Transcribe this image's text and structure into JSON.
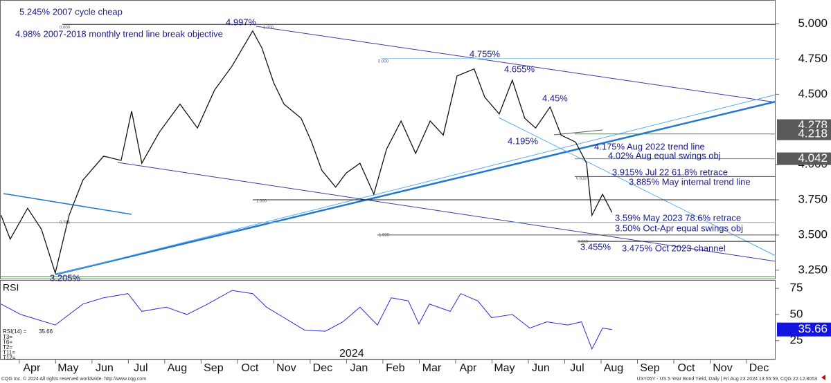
{
  "chart_data": [
    {
      "type": "line",
      "title": "USY05Y - US 5 Year Bond Yield, Daily | Fri Aug 23 2024 13:55:59, CQG 22.12.8053",
      "xlim": [
        -0.53,
        20.8
      ],
      "ylim": [
        3.19,
        5.17
      ],
      "yticks": [
        {
          "value": 5.0,
          "label": "5.000"
        },
        {
          "value": 4.75,
          "label": "4.750"
        },
        {
          "value": 4.5,
          "label": "4.500"
        },
        {
          "value": 4.0,
          "label": "4.000"
        },
        {
          "value": 3.75,
          "label": "3.750"
        },
        {
          "value": 3.5,
          "label": "3.500"
        },
        {
          "value": 3.25,
          "label": "3.250"
        }
      ],
      "price_markers": [
        {
          "value": 4.278,
          "label": "4.278"
        },
        {
          "value": 4.218,
          "label": "4.218"
        },
        {
          "value": 4.042,
          "label": "4.042"
        }
      ],
      "levels": [
        {
          "value": 4.997,
          "color": "#222222"
        },
        {
          "value": 4.755,
          "color": "#9ecbf0"
        },
        {
          "value": 4.218,
          "color": "#2e9e2e"
        },
        {
          "value": 4.042,
          "color": "#3a8fd8"
        },
        {
          "value": 3.915,
          "color": "#3a3ab0"
        },
        {
          "value": 3.75,
          "color": "#222222"
        },
        {
          "value": 3.59,
          "color": "#6ab0e8"
        },
        {
          "value": 3.5,
          "color": "#555555"
        },
        {
          "value": 3.455,
          "color": "#222222"
        },
        {
          "value": 3.205,
          "color": "#2e9e2e"
        }
      ],
      "annotations": [
        "5.245% 2007 cycle cheap",
        "4.98% 2007-2018 monthly trend line break objective",
        "4.997%",
        "4.755%",
        "4.655%",
        "4.45%",
        "4.195%",
        "4.175% Aug 2022 trend line",
        "4.02% Aug equal swings obj",
        "3.915% Jul 22 61.8% retrace",
        "3.885% May internal trend line",
        "3.59% May 2023 78.6% retrace",
        "3.50% Oct-Apr equal swings obj",
        "3.455%",
        "3.475% Oct 2023 channel",
        "3.205%"
      ],
      "fib_labels": [
        "0.000",
        "1.000",
        "0.000",
        "1.000",
        "1.000",
        "0.000",
        "0.786",
        "0.618"
      ],
      "series": [
        {
          "name": "USY05Y",
          "color": "#111111",
          "x": [
            -0.5,
            -0.25,
            0.23,
            0.61,
            0.99,
            1.37,
            1.75,
            2.32,
            2.8,
            3.09,
            3.37,
            3.85,
            4.42,
            4.9,
            5.37,
            5.85,
            6.42,
            6.67,
            7.0,
            7.28,
            7.75,
            8.04,
            8.32,
            8.7,
            8.99,
            9.37,
            9.75,
            10.1,
            10.5,
            10.9,
            11.3,
            11.66,
            12.04,
            12.51,
            12.8,
            13.2,
            13.56,
            13.9,
            14.2,
            14.6,
            14.9,
            15.3,
            15.6,
            15.75,
            16.04,
            16.3
          ],
          "values": [
            3.64,
            3.47,
            3.69,
            3.54,
            3.23,
            3.64,
            3.89,
            4.06,
            4.03,
            4.38,
            4.01,
            4.23,
            4.43,
            4.26,
            4.53,
            4.7,
            4.95,
            4.83,
            4.58,
            4.43,
            4.33,
            4.16,
            3.96,
            3.84,
            3.94,
            4.01,
            3.79,
            4.11,
            4.31,
            4.08,
            4.31,
            4.21,
            4.63,
            4.68,
            4.48,
            4.36,
            4.6,
            4.33,
            4.26,
            4.41,
            4.21,
            4.16,
            4.01,
            3.64,
            3.79,
            3.66
          ]
        }
      ]
    },
    {
      "type": "line",
      "title": "RSI",
      "label": "RSI(14) =",
      "current": {
        "value": 35.66,
        "label": "35.66"
      },
      "side_labels": [
        "T3=",
        "T6=",
        "T2=",
        "T11=",
        "T12="
      ],
      "year_label": "2024",
      "xlim": [
        -0.53,
        20.8
      ],
      "ylim": [
        7,
        83
      ],
      "yticks": [
        75,
        50,
        25
      ],
      "categories": [
        "Apr",
        "May",
        "Jun",
        "Jul",
        "Aug",
        "Sep",
        "Oct",
        "Nov",
        "Dec",
        "Jan",
        "Feb",
        "Mar",
        "Apr",
        "May",
        "Jun",
        "Jul",
        "Aug",
        "Sep",
        "Oct",
        "Nov",
        "Dec"
      ],
      "series": [
        {
          "name": "RSI(14)",
          "color": "#2a2ad8",
          "x": [
            -0.5,
            0.04,
            0.99,
            1.37,
            1.75,
            2.32,
            2.99,
            3.37,
            4.04,
            4.61,
            5.18,
            5.85,
            6.42,
            6.8,
            7.28,
            7.85,
            8.42,
            8.9,
            9.37,
            9.85,
            10.23,
            10.7,
            10.99,
            11.28,
            11.85,
            12.14,
            12.61,
            12.99,
            13.56,
            14.04,
            14.51,
            15.08,
            15.46,
            15.75,
            16.04,
            16.3
          ],
          "values": [
            60,
            50,
            40,
            50,
            60,
            66,
            70,
            53,
            57,
            50,
            60,
            73,
            70,
            57,
            47,
            35,
            34,
            43,
            57,
            40,
            66,
            63,
            41,
            60,
            53,
            70,
            63,
            47,
            50,
            37,
            43,
            40,
            43,
            17,
            37,
            35.66
          ]
        }
      ]
    }
  ],
  "footer": {
    "left": "CQG Inc. © 2024 All rights reserved worldwide. http://www.cqg.com"
  }
}
